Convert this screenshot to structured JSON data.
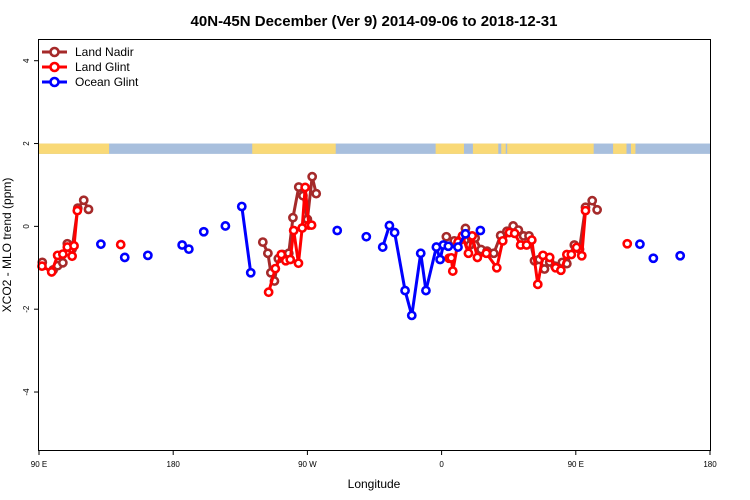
{
  "chart_data": {
    "type": "line",
    "title": "40N-45N December (Ver 9)   2014-09-06 to 2018-12-31",
    "xlabel": "Longitude",
    "ylabel": "XCO2 - MLO trend (ppm)",
    "xlim": [
      90,
      540
    ],
    "ylim": [
      -5.4,
      4.5
    ],
    "grid": false,
    "legend_position": "top-left",
    "x_ticks": [
      {
        "value": 90,
        "label": "90 E"
      },
      {
        "value": 180,
        "label": "180"
      },
      {
        "value": 270,
        "label": "90 W"
      },
      {
        "value": 360,
        "label": "0"
      },
      {
        "value": 450,
        "label": "90 E"
      },
      {
        "value": 540,
        "label": "180"
      }
    ],
    "y_ticks": [
      -4,
      -2,
      0,
      2,
      4
    ],
    "land_mask": {
      "y_range": [
        1.75,
        2.0
      ],
      "land_color": "#F9D977",
      "ocean_color": "#A8BFDD",
      "land_intervals": [
        [
          90,
          137
        ],
        [
          233,
          289
        ],
        [
          356,
          375
        ],
        [
          381,
          398
        ],
        [
          400,
          403
        ],
        [
          404,
          462
        ],
        [
          475,
          484
        ],
        [
          487,
          490
        ]
      ]
    },
    "series": [
      {
        "name": "Land Nadir",
        "color": "#A52A2A",
        "points": [
          [
            92.2,
            -0.87
          ],
          [
            99.5,
            -1.05
          ],
          [
            102.5,
            -0.95
          ],
          [
            106.0,
            -0.88
          ],
          [
            109.0,
            -0.42
          ],
          [
            112.2,
            -0.55
          ],
          [
            116.0,
            0.44
          ],
          [
            120.0,
            0.63
          ],
          [
            123.2,
            0.41
          ],
          [
            240.1,
            -0.38
          ],
          [
            243.5,
            -0.65
          ],
          [
            245.5,
            -1.12
          ],
          [
            247.9,
            -1.32
          ],
          [
            250.5,
            -0.78
          ],
          [
            253.5,
            -0.68
          ],
          [
            257.5,
            -0.65
          ],
          [
            260.3,
            0.21
          ],
          [
            264.2,
            0.95
          ],
          [
            267.0,
            0.74
          ],
          [
            270.0,
            0.17
          ],
          [
            273.2,
            1.2
          ],
          [
            275.9,
            0.79
          ],
          [
            363.2,
            -0.25
          ],
          [
            368.5,
            -0.35
          ],
          [
            372.5,
            -0.33
          ],
          [
            376.0,
            -0.05
          ],
          [
            379.0,
            -0.45
          ],
          [
            382.5,
            -0.28
          ],
          [
            386.5,
            -0.56
          ],
          [
            390.5,
            -0.6
          ],
          [
            395.0,
            -0.65
          ],
          [
            399.6,
            -0.22
          ],
          [
            403.8,
            -0.12
          ],
          [
            408.0,
            0.01
          ],
          [
            411.5,
            -0.09
          ],
          [
            415.0,
            -0.23
          ],
          [
            418.6,
            -0.23
          ],
          [
            422.3,
            -0.83
          ],
          [
            425.5,
            -0.8
          ],
          [
            429.0,
            -1.03
          ],
          [
            432.5,
            -0.86
          ],
          [
            436.0,
            -0.96
          ],
          [
            441.0,
            -0.87
          ],
          [
            444.0,
            -0.9
          ],
          [
            449.0,
            -0.45
          ],
          [
            452.5,
            -0.55
          ],
          [
            456.5,
            0.46
          ],
          [
            461.0,
            0.62
          ],
          [
            464.3,
            0.4
          ]
        ]
      },
      {
        "name": "Land Glint",
        "color": "#FF0000",
        "points": [
          [
            92.0,
            -0.96
          ],
          [
            98.5,
            -1.1
          ],
          [
            102.5,
            -0.7
          ],
          [
            106.0,
            -0.67
          ],
          [
            109.0,
            -0.5
          ],
          [
            112.2,
            -0.72
          ],
          [
            113.5,
            -0.47
          ],
          [
            115.7,
            0.38
          ],
          [
            144.8,
            -0.44
          ],
          [
            244.0,
            -1.59
          ],
          [
            248.5,
            -1.02
          ],
          [
            252.5,
            -0.68
          ],
          [
            255.5,
            -0.83
          ],
          [
            258.5,
            -0.8
          ],
          [
            260.8,
            -0.1
          ],
          [
            264.0,
            -0.89
          ],
          [
            266.5,
            -0.04
          ],
          [
            268.5,
            0.94
          ],
          [
            271.0,
            0.03
          ],
          [
            272.8,
            0.03
          ],
          [
            365.0,
            -0.77
          ],
          [
            366.5,
            -0.76
          ],
          [
            367.5,
            -1.08
          ],
          [
            371.0,
            -0.38
          ],
          [
            374.0,
            -0.23
          ],
          [
            378.0,
            -0.65
          ],
          [
            380.5,
            -0.23
          ],
          [
            384.0,
            -0.75
          ],
          [
            390.0,
            -0.65
          ],
          [
            397.0,
            -1.0
          ],
          [
            401.0,
            -0.35
          ],
          [
            405.5,
            -0.15
          ],
          [
            409.0,
            -0.17
          ],
          [
            413.0,
            -0.45
          ],
          [
            417.0,
            -0.45
          ],
          [
            420.5,
            -0.33
          ],
          [
            424.5,
            -1.4
          ],
          [
            428.0,
            -0.7
          ],
          [
            432.5,
            -0.75
          ],
          [
            436.5,
            -1.0
          ],
          [
            440.0,
            -1.06
          ],
          [
            444.0,
            -0.68
          ],
          [
            447.0,
            -0.68
          ],
          [
            450.5,
            -0.51
          ],
          [
            454.0,
            -0.71
          ],
          [
            456.5,
            0.38
          ],
          [
            484.5,
            -0.42
          ]
        ]
      },
      {
        "name": "Ocean Glint",
        "color": "#0000FF",
        "points": [
          [
            131.5,
            -0.43
          ],
          [
            147.5,
            -0.75
          ],
          [
            163.0,
            -0.7
          ],
          [
            186.0,
            -0.45
          ],
          [
            190.5,
            -0.55
          ],
          [
            200.5,
            -0.13
          ],
          [
            215.0,
            0.01
          ],
          [
            226.0,
            0.48
          ],
          [
            232.0,
            -1.12
          ],
          [
            290.0,
            -0.1
          ],
          [
            309.5,
            -0.25
          ],
          [
            320.5,
            -0.5
          ],
          [
            325.0,
            0.02
          ],
          [
            328.5,
            -0.15
          ],
          [
            335.5,
            -1.55
          ],
          [
            340.0,
            -2.15
          ],
          [
            346.0,
            -0.65
          ],
          [
            349.5,
            -1.55
          ],
          [
            356.5,
            -0.5
          ],
          [
            359.0,
            -0.8
          ],
          [
            361.2,
            -0.45
          ],
          [
            364.5,
            -0.48
          ],
          [
            371.0,
            -0.5
          ],
          [
            376.0,
            -0.18
          ],
          [
            386.0,
            -0.1
          ],
          [
            493.0,
            -0.43
          ],
          [
            502.0,
            -0.77
          ],
          [
            520.0,
            -0.71
          ]
        ]
      }
    ]
  }
}
